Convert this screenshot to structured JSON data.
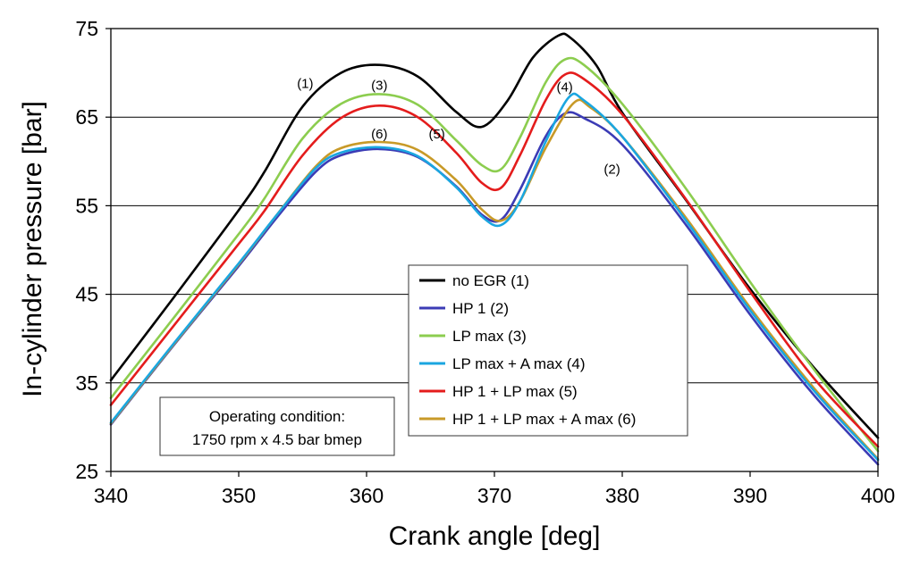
{
  "chart_data": {
    "type": "line",
    "xlabel": "Crank angle [deg]",
    "ylabel": "In-cylinder pressure [bar]",
    "xlim": [
      340,
      400
    ],
    "ylim": [
      25,
      75
    ],
    "xticks": [
      340,
      350,
      360,
      370,
      380,
      390,
      400
    ],
    "yticks": [
      25,
      35,
      45,
      55,
      65,
      75
    ],
    "grid": "horizontal",
    "legend_placement": "center-right",
    "series": [
      {
        "name": "no EGR (1)",
        "color": "#000000",
        "points": [
          [
            340,
            35.3
          ],
          [
            345,
            44.8
          ],
          [
            350,
            54.5
          ],
          [
            352,
            58.8
          ],
          [
            355,
            66.2
          ],
          [
            358,
            70.0
          ],
          [
            361,
            70.9
          ],
          [
            364,
            69.6
          ],
          [
            367,
            65.6
          ],
          [
            369,
            63.9
          ],
          [
            371,
            66.8
          ],
          [
            373,
            71.7
          ],
          [
            375,
            74.2
          ],
          [
            376,
            73.9
          ],
          [
            378,
            70.8
          ],
          [
            380,
            65.5
          ],
          [
            385,
            55.6
          ],
          [
            390,
            45.6
          ],
          [
            395,
            36.7
          ],
          [
            400,
            28.8
          ]
        ]
      },
      {
        "name": "HP 1 (2)",
        "color": "#3b3bb5",
        "points": [
          [
            340,
            30.3
          ],
          [
            345,
            39.4
          ],
          [
            350,
            48.2
          ],
          [
            353,
            53.7
          ],
          [
            356,
            58.8
          ],
          [
            358,
            60.7
          ],
          [
            361,
            61.4
          ],
          [
            364,
            60.5
          ],
          [
            367,
            57.2
          ],
          [
            369,
            54.0
          ],
          [
            370.5,
            53.4
          ],
          [
            372,
            56.8
          ],
          [
            374,
            62.8
          ],
          [
            375.5,
            65.4
          ],
          [
            377,
            64.9
          ],
          [
            380,
            61.9
          ],
          [
            385,
            52.8
          ],
          [
            390,
            42.7
          ],
          [
            395,
            33.6
          ],
          [
            400,
            25.8
          ]
        ]
      },
      {
        "name": "LP max (3)",
        "color": "#8ccd4f",
        "points": [
          [
            340,
            33.3
          ],
          [
            345,
            42.5
          ],
          [
            350,
            51.8
          ],
          [
            352,
            55.8
          ],
          [
            355,
            62.6
          ],
          [
            358,
            66.5
          ],
          [
            361,
            67.6
          ],
          [
            364,
            66.4
          ],
          [
            367,
            62.4
          ],
          [
            369,
            59.6
          ],
          [
            370.5,
            59.1
          ],
          [
            372,
            62.7
          ],
          [
            374,
            68.9
          ],
          [
            375.5,
            71.5
          ],
          [
            377,
            70.9
          ],
          [
            380,
            66.5
          ],
          [
            385,
            56.9
          ],
          [
            390,
            46.4
          ],
          [
            395,
            36.5
          ],
          [
            400,
            27.3
          ]
        ]
      },
      {
        "name": "LP max + A max (4)",
        "color": "#1aa6e0",
        "points": [
          [
            340,
            30.5
          ],
          [
            345,
            39.6
          ],
          [
            350,
            48.5
          ],
          [
            353,
            54.0
          ],
          [
            356,
            59.2
          ],
          [
            358,
            61.0
          ],
          [
            361,
            61.6
          ],
          [
            364,
            60.6
          ],
          [
            367,
            57.1
          ],
          [
            369,
            53.8
          ],
          [
            370.5,
            52.8
          ],
          [
            372,
            55.5
          ],
          [
            374,
            62.2
          ],
          [
            375.8,
            67.2
          ],
          [
            377,
            66.9
          ],
          [
            380,
            62.8
          ],
          [
            385,
            53.3
          ],
          [
            390,
            43.2
          ],
          [
            395,
            34.1
          ],
          [
            400,
            26.3
          ]
        ]
      },
      {
        "name": "HP 1 + LP max (5)",
        "color": "#e41c1c",
        "points": [
          [
            340,
            32.5
          ],
          [
            345,
            41.6
          ],
          [
            350,
            50.7
          ],
          [
            352,
            54.4
          ],
          [
            355,
            60.7
          ],
          [
            358,
            64.9
          ],
          [
            361,
            66.3
          ],
          [
            364,
            65.0
          ],
          [
            367,
            61.0
          ],
          [
            369,
            57.6
          ],
          [
            370.5,
            57.0
          ],
          [
            372,
            60.7
          ],
          [
            374,
            66.9
          ],
          [
            375.5,
            69.8
          ],
          [
            377,
            69.3
          ],
          [
            380,
            65.3
          ],
          [
            385,
            55.7
          ],
          [
            390,
            45.3
          ],
          [
            395,
            35.5
          ],
          [
            400,
            27.8
          ]
        ]
      },
      {
        "name": "HP 1 + LP max + A max (6)",
        "color": "#c89a28",
        "points": [
          [
            340,
            30.4
          ],
          [
            345,
            39.5
          ],
          [
            350,
            48.4
          ],
          [
            353,
            54.0
          ],
          [
            356,
            59.4
          ],
          [
            358,
            61.5
          ],
          [
            361,
            62.2
          ],
          [
            364,
            61.3
          ],
          [
            367,
            57.9
          ],
          [
            369,
            54.6
          ],
          [
            370.5,
            53.3
          ],
          [
            372,
            55.5
          ],
          [
            374,
            61.5
          ],
          [
            376.2,
            66.6
          ],
          [
            377.5,
            66.1
          ],
          [
            380,
            62.8
          ],
          [
            385,
            53.6
          ],
          [
            390,
            43.5
          ],
          [
            395,
            34.4
          ],
          [
            400,
            26.4
          ]
        ]
      }
    ],
    "annotations": [
      {
        "text": "(1)",
        "x": 355.2,
        "y": 68.3
      },
      {
        "text": "(3)",
        "x": 361.0,
        "y": 68.1
      },
      {
        "text": "(4)",
        "x": 375.5,
        "y": 67.9
      },
      {
        "text": "(6)",
        "x": 361.0,
        "y": 62.6
      },
      {
        "text": "(5)",
        "x": 365.5,
        "y": 62.6
      },
      {
        "text": "(2)",
        "x": 379.2,
        "y": 58.6
      }
    ],
    "textbox": [
      "Operating condition:",
      "1750 rpm x 4.5 bar bmep"
    ]
  }
}
